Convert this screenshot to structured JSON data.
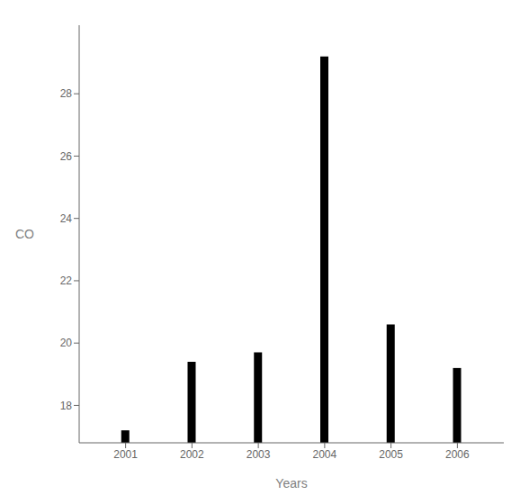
{
  "chart_data": {
    "type": "bar",
    "x": [
      2001,
      2002,
      2003,
      2004,
      2005,
      2006
    ],
    "values": [
      17.2,
      19.4,
      19.7,
      29.2,
      20.6,
      19.2
    ],
    "color": "#000000",
    "xlabel": "Years",
    "ylabel": "CO",
    "xlim": [
      2000.3,
      2006.7
    ],
    "ylim": [
      16.8,
      30.2
    ],
    "xticks": [
      2001,
      2002,
      2003,
      2004,
      2005,
      2006
    ],
    "yticks": [
      18,
      20,
      22,
      24,
      26,
      28
    ],
    "grid": false
  }
}
